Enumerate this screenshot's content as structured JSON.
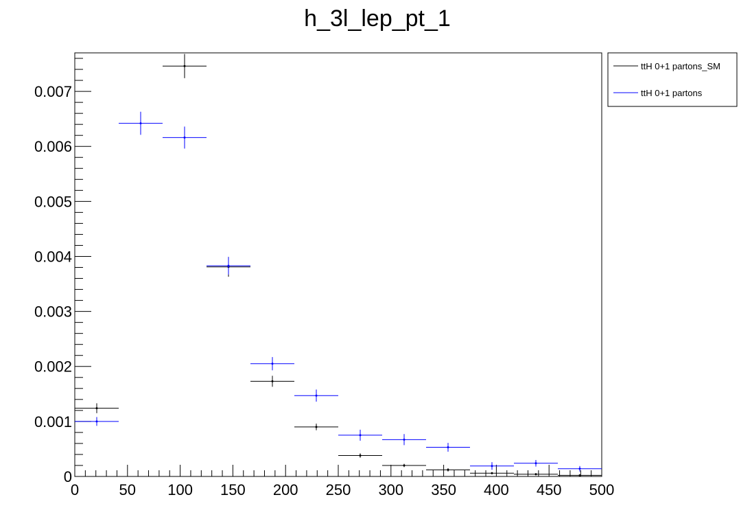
{
  "chart_data": {
    "type": "scatter",
    "title": "h_3l_lep_pt_1",
    "xlabel": "",
    "ylabel": "",
    "xlim": [
      0,
      500
    ],
    "ylim": [
      0,
      0.0077
    ],
    "x_ticks": [
      "0",
      "50",
      "100",
      "150",
      "200",
      "250",
      "300",
      "350",
      "400",
      "450",
      "500"
    ],
    "x_tick_values": [
      0,
      50,
      100,
      150,
      200,
      250,
      300,
      350,
      400,
      450,
      500
    ],
    "y_ticks": [
      "0",
      "0.001",
      "0.002",
      "0.003",
      "0.004",
      "0.005",
      "0.006",
      "0.007"
    ],
    "y_tick_values": [
      0,
      0.001,
      0.002,
      0.003,
      0.004,
      0.005,
      0.006,
      0.007
    ],
    "bin_edges": [
      0,
      41.67,
      83.33,
      125,
      166.67,
      208.33,
      250,
      291.67,
      333.33,
      375,
      416.67,
      458.33,
      500
    ],
    "legend_position": "top-right-outside",
    "grid": false,
    "series": [
      {
        "name": "ttH 0+1 partons_SM",
        "color": "#000000",
        "values": [
          0.00124,
          0.0,
          0.00746,
          0.00381,
          0.00173,
          0.0009,
          0.00038,
          0.0002,
          0.00012,
          6e-05,
          4e-05,
          2e-05
        ],
        "errors": [
          9e-05,
          0.0,
          0.00022,
          0.00018,
          0.0001,
          6e-05,
          4e-05,
          3e-05,
          3e-05,
          2e-05,
          2e-05,
          1e-05
        ]
      },
      {
        "name": "ttH 0+1 partons",
        "color": "#0000ff",
        "values": [
          0.001,
          0.00642,
          0.00616,
          0.00383,
          0.00205,
          0.00147,
          0.00075,
          0.00067,
          0.00053,
          0.00019,
          0.00024,
          0.00014
        ],
        "errors": [
          8e-05,
          0.00021,
          0.0002,
          0.00016,
          0.00012,
          0.00011,
          0.0001,
          0.0001,
          8e-05,
          7e-05,
          6e-05,
          5e-05
        ]
      }
    ]
  }
}
